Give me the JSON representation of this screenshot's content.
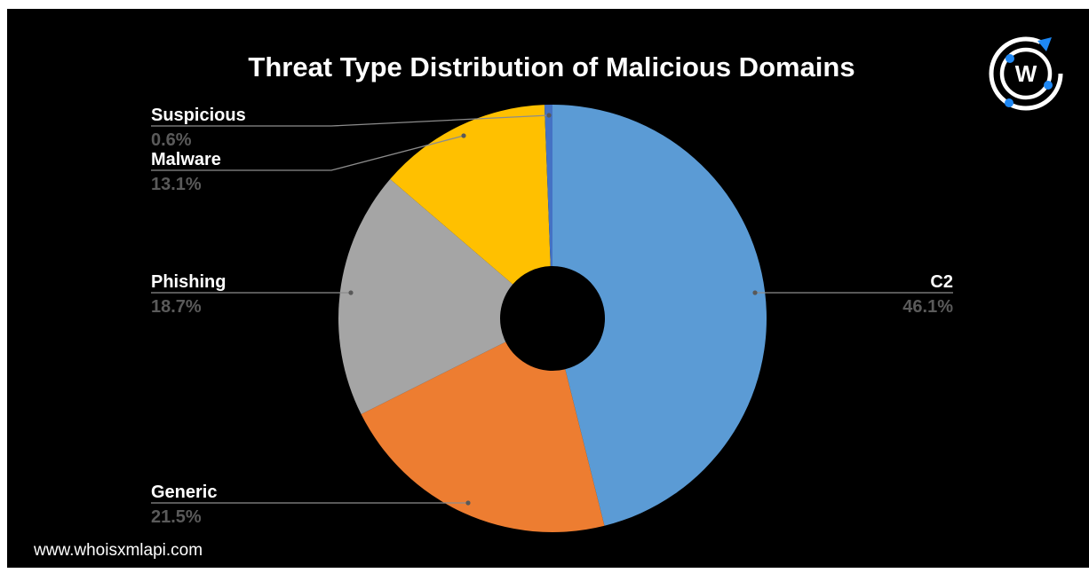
{
  "chart_data": {
    "type": "pie",
    "donut": true,
    "title": "Threat Type Distribution of Malicious Domains",
    "slices": [
      {
        "label": "C2",
        "value": 46.1,
        "display": "46.1%",
        "color": "#5b9bd5"
      },
      {
        "label": "Generic",
        "value": 21.5,
        "display": "21.5%",
        "color": "#ed7d31"
      },
      {
        "label": "Phishing",
        "value": 18.7,
        "display": "18.7%",
        "color": "#a5a5a5"
      },
      {
        "label": "Malware",
        "value": 13.1,
        "display": "13.1%",
        "color": "#ffc000"
      },
      {
        "label": "Suspicious",
        "value": 0.6,
        "display": "0.6%",
        "color": "#4472c4"
      }
    ],
    "legend": "none",
    "data_labels": "outside with leader lines"
  },
  "footer": {
    "url": "www.whoisxmlapi.com"
  },
  "logo": {
    "icon": "whoisxmlapi-logo-icon",
    "letter": "W",
    "accent_color": "#1e88f5"
  }
}
